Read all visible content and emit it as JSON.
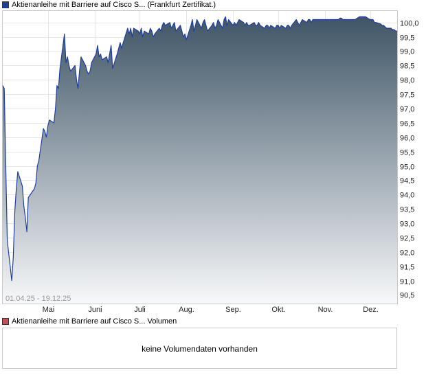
{
  "legend": {
    "price_label": "Aktienanleihe mit Barriere auf Cisco S... (Frankfurt Zertifikat.)",
    "price_color": "#1f3f9f",
    "volume_label": "Aktienanleihe mit Barriere auf Cisco S... Volumen",
    "volume_color": "#c0505a"
  },
  "date_range": "01.04.25 - 19.12.25",
  "volume_message": "keine Volumendaten vorhanden",
  "chart_data": {
    "type": "area",
    "ylim": [
      90.2,
      100.4
    ],
    "xlim": [
      "2025-04-01",
      "2025-12-19"
    ],
    "y_ticks": [
      "90,5",
      "91,0",
      "91,5",
      "92,0",
      "92,5",
      "93,0",
      "93,5",
      "94,0",
      "94,5",
      "95,0",
      "95,5",
      "96,0",
      "96,5",
      "97,0",
      "97,5",
      "98,0",
      "98,5",
      "99,0",
      "99,5",
      "100,0"
    ],
    "x_ticks": [
      {
        "label": "Mai",
        "date": "2025-05-01"
      },
      {
        "label": "Juni",
        "date": "2025-06-01"
      },
      {
        "label": "Juli",
        "date": "2025-07-01"
      },
      {
        "label": "Aug.",
        "date": "2025-08-01"
      },
      {
        "label": "Sep.",
        "date": "2025-09-01"
      },
      {
        "label": "Okt.",
        "date": "2025-10-01"
      },
      {
        "label": "Nov.",
        "date": "2025-11-01"
      },
      {
        "label": "Dez.",
        "date": "2025-12-01"
      }
    ],
    "grid": true,
    "colors": {
      "line": "#1f3f9f",
      "fill_top": "#3f5566",
      "fill_bottom": "#f7f8fa"
    },
    "series": [
      {
        "points": [
          [
            "2025-04-01",
            97.8
          ],
          [
            "2025-04-02",
            97.7
          ],
          [
            "2025-04-03",
            95.0
          ],
          [
            "2025-04-04",
            92.4
          ],
          [
            "2025-04-07",
            91.0
          ],
          [
            "2025-04-08",
            91.8
          ],
          [
            "2025-04-09",
            93.4
          ],
          [
            "2025-04-10",
            94.2
          ],
          [
            "2025-04-11",
            94.8
          ],
          [
            "2025-04-14",
            94.3
          ],
          [
            "2025-04-15",
            93.6
          ],
          [
            "2025-04-16",
            93.2
          ],
          [
            "2025-04-17",
            92.7
          ],
          [
            "2025-04-18",
            93.9
          ],
          [
            "2025-04-22",
            94.2
          ],
          [
            "2025-04-23",
            94.4
          ],
          [
            "2025-04-24",
            95.0
          ],
          [
            "2025-04-25",
            95.2
          ],
          [
            "2025-04-28",
            96.3
          ],
          [
            "2025-04-29",
            96.2
          ],
          [
            "2025-04-30",
            96.0
          ],
          [
            "2025-05-01",
            96.4
          ],
          [
            "2025-05-02",
            96.6
          ],
          [
            "2025-05-05",
            96.5
          ],
          [
            "2025-05-06",
            97.0
          ],
          [
            "2025-05-07",
            97.8
          ],
          [
            "2025-05-08",
            97.7
          ],
          [
            "2025-05-09",
            98.4
          ],
          [
            "2025-05-12",
            99.6
          ],
          [
            "2025-05-13",
            98.6
          ],
          [
            "2025-05-14",
            98.8
          ],
          [
            "2025-05-15",
            98.5
          ],
          [
            "2025-05-16",
            98.3
          ],
          [
            "2025-05-19",
            98.5
          ],
          [
            "2025-05-20",
            98.0
          ],
          [
            "2025-05-21",
            97.7
          ],
          [
            "2025-05-22",
            98.3
          ],
          [
            "2025-05-23",
            98.8
          ],
          [
            "2025-05-26",
            98.5
          ],
          [
            "2025-05-27",
            98.3
          ],
          [
            "2025-05-28",
            98.2
          ],
          [
            "2025-05-29",
            98.3
          ],
          [
            "2025-05-30",
            98.6
          ],
          [
            "2025-06-02",
            98.9
          ],
          [
            "2025-06-03",
            99.2
          ],
          [
            "2025-06-04",
            98.8
          ],
          [
            "2025-06-05",
            98.9
          ],
          [
            "2025-06-06",
            98.7
          ],
          [
            "2025-06-09",
            98.8
          ],
          [
            "2025-06-10",
            98.6
          ],
          [
            "2025-06-11",
            98.9
          ],
          [
            "2025-06-12",
            99.2
          ],
          [
            "2025-06-13",
            98.4
          ],
          [
            "2025-06-16",
            98.9
          ],
          [
            "2025-06-17",
            99.1
          ],
          [
            "2025-06-18",
            99.3
          ],
          [
            "2025-06-19",
            99.1
          ],
          [
            "2025-06-20",
            99.3
          ],
          [
            "2025-06-23",
            99.8
          ],
          [
            "2025-06-24",
            99.6
          ],
          [
            "2025-06-25",
            99.8
          ],
          [
            "2025-06-26",
            99.5
          ],
          [
            "2025-06-27",
            99.8
          ],
          [
            "2025-06-30",
            99.7
          ],
          [
            "2025-07-01",
            99.6
          ],
          [
            "2025-07-02",
            99.8
          ],
          [
            "2025-07-03",
            99.5
          ],
          [
            "2025-07-04",
            99.7
          ],
          [
            "2025-07-07",
            99.6
          ],
          [
            "2025-07-08",
            99.8
          ],
          [
            "2025-07-09",
            99.7
          ],
          [
            "2025-07-10",
            99.5
          ],
          [
            "2025-07-11",
            99.6
          ],
          [
            "2025-07-14",
            99.8
          ],
          [
            "2025-07-15",
            99.7
          ],
          [
            "2025-07-16",
            99.9
          ],
          [
            "2025-07-17",
            100.0
          ],
          [
            "2025-07-18",
            99.9
          ],
          [
            "2025-07-21",
            100.0
          ],
          [
            "2025-07-22",
            99.8
          ],
          [
            "2025-07-23",
            99.9
          ],
          [
            "2025-07-24",
            100.0
          ],
          [
            "2025-07-25",
            99.7
          ],
          [
            "2025-07-28",
            99.9
          ],
          [
            "2025-07-29",
            99.7
          ],
          [
            "2025-07-30",
            99.5
          ],
          [
            "2025-07-31",
            99.6
          ],
          [
            "2025-08-01",
            99.4
          ],
          [
            "2025-08-04",
            99.9
          ],
          [
            "2025-08-05",
            100.1
          ],
          [
            "2025-08-06",
            99.7
          ],
          [
            "2025-08-07",
            99.9
          ],
          [
            "2025-08-08",
            100.1
          ],
          [
            "2025-08-11",
            99.8
          ],
          [
            "2025-08-12",
            100.0
          ],
          [
            "2025-08-13",
            100.1
          ],
          [
            "2025-08-14",
            99.9
          ],
          [
            "2025-08-15",
            99.7
          ],
          [
            "2025-08-18",
            99.9
          ],
          [
            "2025-08-19",
            100.0
          ],
          [
            "2025-08-20",
            99.8
          ],
          [
            "2025-08-21",
            99.9
          ],
          [
            "2025-08-22",
            100.1
          ],
          [
            "2025-08-25",
            99.8
          ],
          [
            "2025-08-26",
            100.1
          ],
          [
            "2025-08-27",
            100.2
          ],
          [
            "2025-08-28",
            99.9
          ],
          [
            "2025-08-29",
            100.1
          ],
          [
            "2025-09-01",
            99.9
          ],
          [
            "2025-09-02",
            100.0
          ],
          [
            "2025-09-03",
            99.9
          ],
          [
            "2025-09-04",
            100.0
          ],
          [
            "2025-09-05",
            100.1
          ],
          [
            "2025-09-08",
            100.0
          ],
          [
            "2025-09-09",
            99.9
          ],
          [
            "2025-09-10",
            100.0
          ],
          [
            "2025-09-11",
            99.9
          ],
          [
            "2025-09-12",
            99.9
          ],
          [
            "2025-09-15",
            100.0
          ],
          [
            "2025-09-16",
            99.9
          ],
          [
            "2025-09-17",
            99.9
          ],
          [
            "2025-09-18",
            100.0
          ],
          [
            "2025-09-19",
            99.9
          ],
          [
            "2025-09-22",
            99.8
          ],
          [
            "2025-09-23",
            99.9
          ],
          [
            "2025-09-24",
            99.9
          ],
          [
            "2025-09-25",
            99.8
          ],
          [
            "2025-09-26",
            99.9
          ],
          [
            "2025-09-29",
            99.8
          ],
          [
            "2025-09-30",
            99.9
          ],
          [
            "2025-10-01",
            99.9
          ],
          [
            "2025-10-02",
            99.8
          ],
          [
            "2025-10-03",
            99.9
          ],
          [
            "2025-10-06",
            99.8
          ],
          [
            "2025-10-07",
            99.9
          ],
          [
            "2025-10-08",
            99.9
          ],
          [
            "2025-10-09",
            99.8
          ],
          [
            "2025-10-10",
            99.9
          ],
          [
            "2025-10-13",
            100.1
          ],
          [
            "2025-10-14",
            100.0
          ],
          [
            "2025-10-15",
            99.9
          ],
          [
            "2025-10-16",
            100.0
          ],
          [
            "2025-10-17",
            100.1
          ],
          [
            "2025-10-20",
            100.0
          ],
          [
            "2025-10-21",
            100.1
          ],
          [
            "2025-10-22",
            100.1
          ],
          [
            "2025-10-23",
            100.0
          ],
          [
            "2025-10-24",
            100.1
          ],
          [
            "2025-10-27",
            100.1
          ],
          [
            "2025-10-28",
            100.1
          ],
          [
            "2025-10-29",
            100.1
          ],
          [
            "2025-10-30",
            100.1
          ],
          [
            "2025-10-31",
            100.1
          ],
          [
            "2025-11-03",
            100.1
          ],
          [
            "2025-11-04",
            100.1
          ],
          [
            "2025-11-05",
            100.1
          ],
          [
            "2025-11-06",
            100.1
          ],
          [
            "2025-11-07",
            100.1
          ],
          [
            "2025-11-10",
            100.1
          ],
          [
            "2025-11-11",
            100.15
          ],
          [
            "2025-11-12",
            100.15
          ],
          [
            "2025-11-13",
            100.1
          ],
          [
            "2025-11-14",
            100.1
          ],
          [
            "2025-11-17",
            100.1
          ],
          [
            "2025-11-18",
            100.1
          ],
          [
            "2025-11-19",
            100.1
          ],
          [
            "2025-11-20",
            100.1
          ],
          [
            "2025-11-21",
            100.1
          ],
          [
            "2025-11-24",
            100.2
          ],
          [
            "2025-11-25",
            100.2
          ],
          [
            "2025-11-26",
            100.2
          ],
          [
            "2025-11-27",
            100.2
          ],
          [
            "2025-11-28",
            100.2
          ],
          [
            "2025-12-01",
            100.1
          ],
          [
            "2025-12-02",
            100.1
          ],
          [
            "2025-12-03",
            100.1
          ],
          [
            "2025-12-04",
            100.0
          ],
          [
            "2025-12-05",
            100.0
          ],
          [
            "2025-12-08",
            99.95
          ],
          [
            "2025-12-09",
            99.9
          ],
          [
            "2025-12-10",
            99.9
          ],
          [
            "2025-12-11",
            99.85
          ],
          [
            "2025-12-12",
            99.8
          ],
          [
            "2025-12-15",
            99.8
          ],
          [
            "2025-12-16",
            99.75
          ],
          [
            "2025-12-17",
            99.75
          ],
          [
            "2025-12-18",
            99.7
          ],
          [
            "2025-12-19",
            99.7
          ]
        ]
      }
    ]
  }
}
